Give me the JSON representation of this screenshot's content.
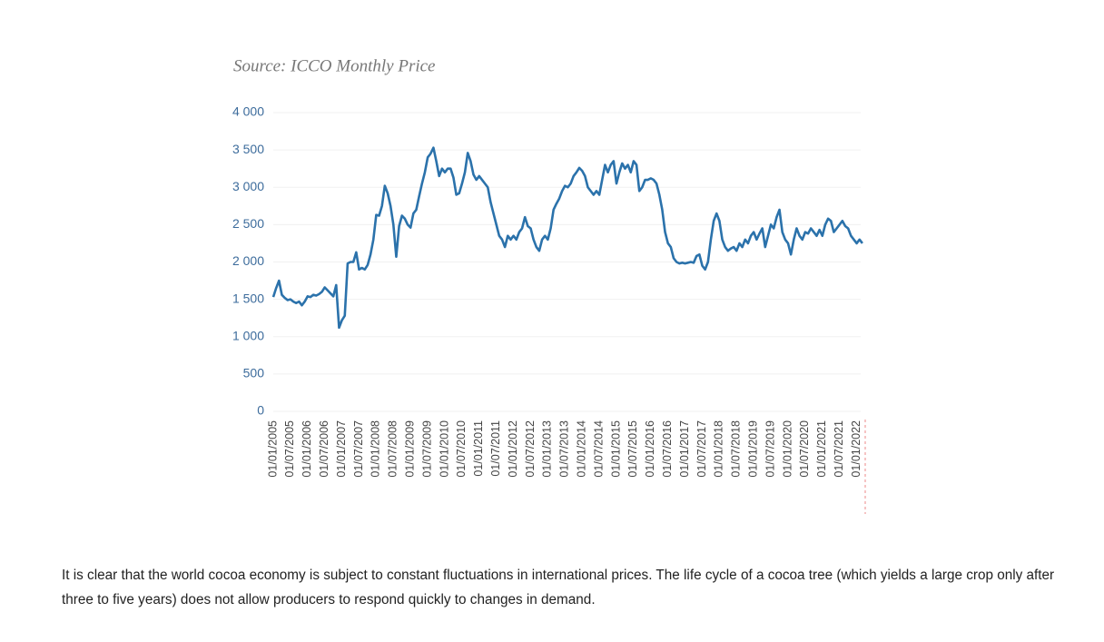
{
  "chart_data": {
    "type": "line",
    "title": "Source: ICCO Monthly Price",
    "categories": [
      "01/01/2005",
      null,
      null,
      null,
      null,
      null,
      "01/07/2005",
      null,
      null,
      null,
      null,
      null,
      "01/01/2006",
      null,
      null,
      null,
      null,
      null,
      "01/07/2006",
      null,
      null,
      null,
      null,
      null,
      "01/01/2007",
      null,
      null,
      null,
      null,
      null,
      "01/07/2007",
      null,
      null,
      null,
      null,
      null,
      "01/01/2008",
      null,
      null,
      null,
      null,
      null,
      "01/07/2008",
      null,
      null,
      null,
      null,
      null,
      "01/01/2009",
      null,
      null,
      null,
      null,
      null,
      "01/07/2009",
      null,
      null,
      null,
      null,
      null,
      "01/01/2010",
      null,
      null,
      null,
      null,
      null,
      "01/07/2010",
      null,
      null,
      null,
      null,
      null,
      "01/01/2011",
      null,
      null,
      null,
      null,
      null,
      "01/07/2011",
      null,
      null,
      null,
      null,
      null,
      "01/01/2012",
      null,
      null,
      null,
      null,
      null,
      "01/07/2012",
      null,
      null,
      null,
      null,
      null,
      "01/01/2013",
      null,
      null,
      null,
      null,
      null,
      "01/07/2013",
      null,
      null,
      null,
      null,
      null,
      "01/01/2014",
      null,
      null,
      null,
      null,
      null,
      "01/07/2014",
      null,
      null,
      null,
      null,
      null,
      "01/01/2015",
      null,
      null,
      null,
      null,
      null,
      "01/07/2015",
      null,
      null,
      null,
      null,
      null,
      "01/01/2016",
      null,
      null,
      null,
      null,
      null,
      "01/07/2016",
      null,
      null,
      null,
      null,
      null,
      "01/01/2017",
      null,
      null,
      null,
      null,
      null,
      "01/07/2017",
      null,
      null,
      null,
      null,
      null,
      "01/01/2018",
      null,
      null,
      null,
      null,
      null,
      "01/07/2018",
      null,
      null,
      null,
      null,
      null,
      "01/01/2019",
      null,
      null,
      null,
      null,
      null,
      "01/07/2019",
      null,
      null,
      null,
      null,
      null,
      "01/01/2020",
      null,
      null,
      null,
      null,
      null,
      "01/07/2020",
      null,
      null,
      null,
      null,
      null,
      "01/01/2021",
      null,
      null,
      null,
      null,
      null,
      "01/07/2021",
      null,
      null,
      null,
      null,
      null,
      "01/01/2022",
      null,
      null
    ],
    "values": [
      1530,
      1650,
      1750,
      1560,
      1520,
      1490,
      1500,
      1470,
      1450,
      1470,
      1420,
      1470,
      1540,
      1530,
      1560,
      1550,
      1570,
      1600,
      1660,
      1620,
      1580,
      1540,
      1690,
      1120,
      1220,
      1280,
      1980,
      2000,
      2000,
      2130,
      1900,
      1920,
      1900,
      1960,
      2100,
      2300,
      2630,
      2620,
      2750,
      3020,
      2920,
      2750,
      2500,
      2070,
      2480,
      2620,
      2580,
      2500,
      2460,
      2650,
      2700,
      2880,
      3050,
      3200,
      3400,
      3450,
      3530,
      3350,
      3150,
      3250,
      3200,
      3250,
      3250,
      3130,
      2900,
      2920,
      3050,
      3200,
      3460,
      3350,
      3170,
      3100,
      3150,
      3100,
      3050,
      3000,
      2800,
      2650,
      2500,
      2350,
      2300,
      2200,
      2350,
      2300,
      2350,
      2300,
      2400,
      2450,
      2600,
      2480,
      2450,
      2300,
      2200,
      2150,
      2300,
      2350,
      2300,
      2450,
      2700,
      2780,
      2850,
      2950,
      3020,
      3000,
      3050,
      3150,
      3200,
      3260,
      3220,
      3150,
      3000,
      2950,
      2900,
      2950,
      2900,
      3100,
      3300,
      3200,
      3300,
      3350,
      3050,
      3200,
      3320,
      3250,
      3300,
      3200,
      3350,
      3300,
      2950,
      3000,
      3100,
      3100,
      3120,
      3100,
      3050,
      2900,
      2700,
      2400,
      2250,
      2200,
      2050,
      2000,
      1980,
      1990,
      1980,
      1990,
      2000,
      1990,
      2080,
      2100,
      1950,
      1900,
      2000,
      2300,
      2550,
      2650,
      2550,
      2300,
      2200,
      2150,
      2180,
      2200,
      2150,
      2250,
      2200,
      2300,
      2250,
      2350,
      2400,
      2300,
      2380,
      2450,
      2200,
      2350,
      2500,
      2450,
      2600,
      2700,
      2400,
      2300,
      2250,
      2100,
      2300,
      2450,
      2350,
      2300,
      2400,
      2380,
      2450,
      2400,
      2350,
      2430,
      2350,
      2500,
      2580,
      2550,
      2400,
      2450,
      2500,
      2550,
      2480,
      2450,
      2350,
      2300,
      2250,
      2300,
      2250
    ],
    "color": "#2b72ab",
    "ylim": [
      0,
      4000
    ],
    "yticks": [
      0,
      500,
      {
        "value": 1000,
        "label": "1 000"
      },
      {
        "value": 1500,
        "label": "1 500"
      },
      {
        "value": 2000,
        "label": "2 000"
      },
      {
        "value": 2500,
        "label": "2 500"
      },
      {
        "value": 3000,
        "label": "3 000"
      },
      {
        "value": 3500,
        "label": "3 500"
      },
      {
        "value": 4000,
        "label": "4 000"
      }
    ],
    "grid": true
  },
  "paragraph": "It is clear that the world cocoa economy is subject to constant fluctuations in international prices. The life cycle of a cocoa tree (which yields a large crop only after three to five years) does not allow producers to respond quickly to changes in demand."
}
